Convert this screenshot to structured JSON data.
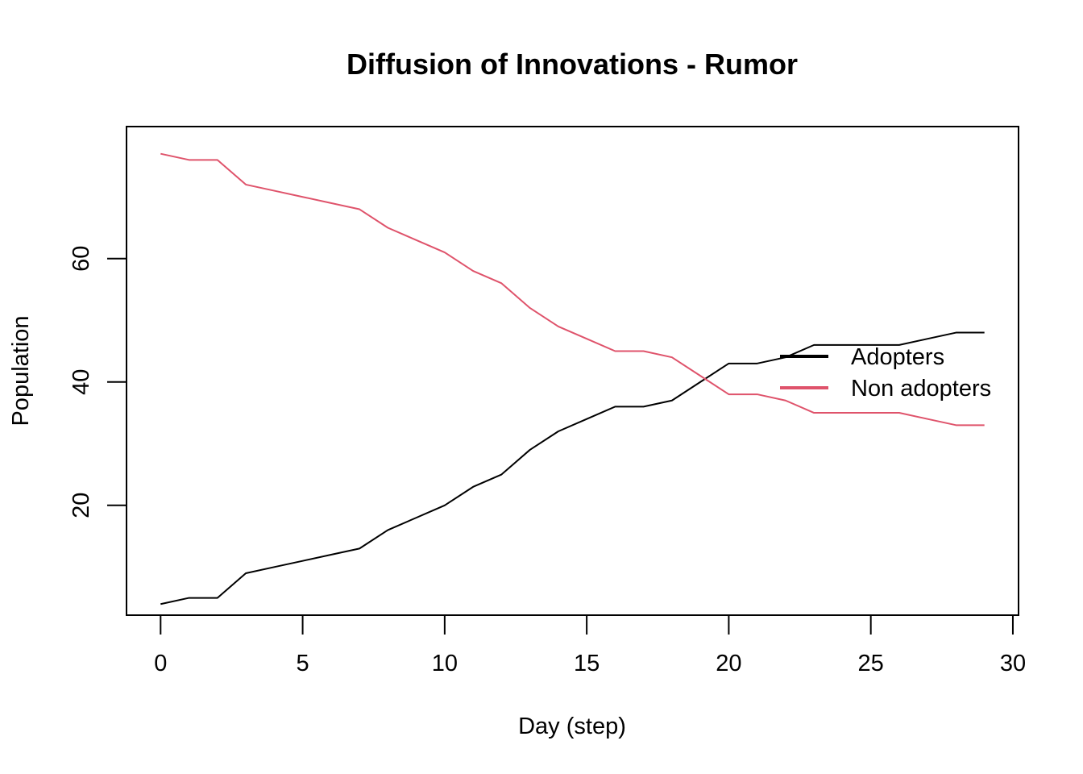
{
  "chart_data": {
    "type": "line",
    "title": "Diffusion of Innovations - Rumor",
    "xlabel": "Day (step)",
    "ylabel": "Population",
    "xlim": [
      -1.2,
      30.2
    ],
    "ylim": [
      2.2,
      81.4
    ],
    "x_ticks": [
      0,
      5,
      10,
      15,
      20,
      25,
      30
    ],
    "y_ticks": [
      20,
      40,
      60
    ],
    "grid": false,
    "legend_position": "right",
    "x": [
      0,
      1,
      2,
      3,
      4,
      5,
      6,
      7,
      8,
      9,
      10,
      11,
      12,
      13,
      14,
      15,
      16,
      17,
      18,
      19,
      20,
      21,
      22,
      23,
      24,
      25,
      26,
      27,
      28,
      29
    ],
    "series": [
      {
        "name": "Adopters",
        "color": "#000000",
        "values": [
          4,
          5,
          5,
          9,
          10,
          11,
          12,
          13,
          16,
          18,
          20,
          23,
          25,
          29,
          32,
          34,
          36,
          36,
          37,
          40,
          43,
          43,
          44,
          46,
          46,
          46,
          46,
          47,
          48,
          48
        ]
      },
      {
        "name": "Non adopters",
        "color": "#DF536B",
        "values": [
          77,
          76,
          76,
          72,
          71,
          70,
          69,
          68,
          65,
          63,
          61,
          58,
          56,
          52,
          49,
          47,
          45,
          45,
          44,
          41,
          38,
          38,
          37,
          35,
          35,
          35,
          35,
          34,
          33,
          33
        ]
      }
    ]
  }
}
